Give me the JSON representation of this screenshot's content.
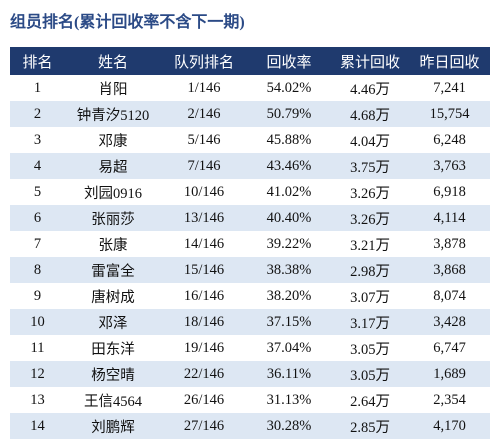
{
  "title": "组员排名(累计回收率不含下一期)",
  "table": {
    "header": [
      "排名",
      "姓名",
      "队列排名",
      "回收率",
      "累计回收",
      "昨日回收"
    ],
    "rows": [
      [
        "1",
        "肖阳",
        "1/146",
        "54.02%",
        "4.46万",
        "7,241"
      ],
      [
        "2",
        "钟青汐5120",
        "2/146",
        "50.79%",
        "4.68万",
        "15,754"
      ],
      [
        "3",
        "邓康",
        "5/146",
        "45.88%",
        "4.04万",
        "6,248"
      ],
      [
        "4",
        "易超",
        "7/146",
        "43.46%",
        "3.75万",
        "3,763"
      ],
      [
        "5",
        "刘园0916",
        "10/146",
        "41.02%",
        "3.26万",
        "6,918"
      ],
      [
        "6",
        "张丽莎",
        "13/146",
        "40.40%",
        "3.26万",
        "4,114"
      ],
      [
        "7",
        "张康",
        "14/146",
        "39.22%",
        "3.21万",
        "3,878"
      ],
      [
        "8",
        "雷富全",
        "15/146",
        "38.38%",
        "2.98万",
        "3,868"
      ],
      [
        "9",
        "唐树成",
        "16/146",
        "38.20%",
        "3.07万",
        "8,074"
      ],
      [
        "10",
        "邓泽",
        "18/146",
        "37.15%",
        "3.17万",
        "3,428"
      ],
      [
        "11",
        "田东洋",
        "19/146",
        "37.04%",
        "3.05万",
        "6,747"
      ],
      [
        "12",
        "杨空晴",
        "22/146",
        "36.11%",
        "3.05万",
        "1,689"
      ],
      [
        "13",
        "王信4564",
        "26/146",
        "31.13%",
        "2.64万",
        "2,354"
      ],
      [
        "14",
        "刘鹏辉",
        "27/146",
        "30.28%",
        "2.85万",
        "4,170"
      ]
    ]
  }
}
